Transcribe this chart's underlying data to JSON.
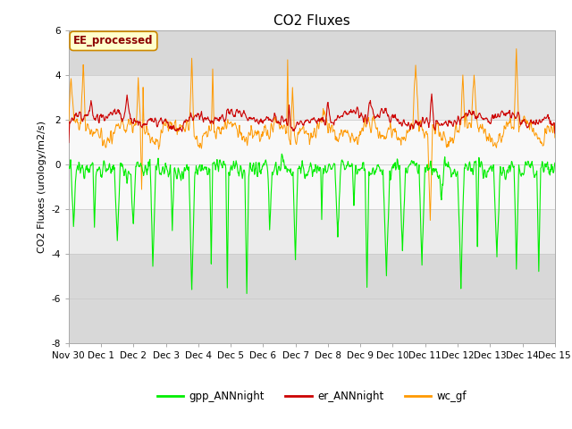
{
  "title": "CO2 Fluxes",
  "ylabel": "CO2 Fluxes (urology/m2/s)",
  "ylim": [
    -8,
    6
  ],
  "yticks": [
    -8,
    -6,
    -4,
    -2,
    0,
    2,
    4,
    6
  ],
  "legend_label": "EE_processed",
  "line_labels": [
    "gpp_ANNnight",
    "er_ANNnight",
    "wc_gf"
  ],
  "line_colors": [
    "#00ee00",
    "#cc0000",
    "#ff9900"
  ],
  "background_color": "#ffffff",
  "plot_bg_color": "#ffffff",
  "title_fontsize": 11,
  "axis_fontsize": 8,
  "tick_fontsize": 7.5,
  "num_points": 1000,
  "seed": 12345
}
